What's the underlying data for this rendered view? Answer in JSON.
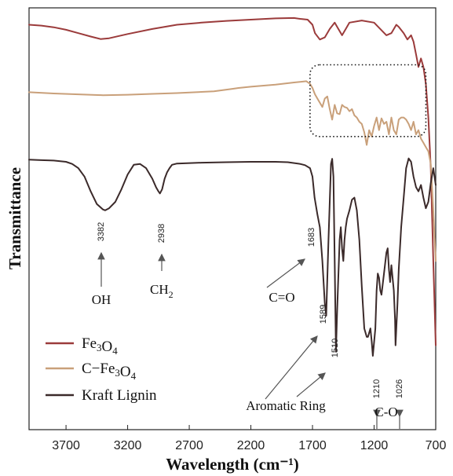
{
  "chart_data": {
    "type": "line",
    "xlabel": "Wavelength (cm⁻¹)",
    "ylabel": "Transmittance",
    "xlim": [
      4000,
      700
    ],
    "x_reversed": true,
    "x_ticks": [
      3700,
      3200,
      2700,
      2200,
      1700,
      1200,
      700
    ],
    "y_ticks": false,
    "legend_position": "bottom-left",
    "series": [
      {
        "name": "Fe3O4",
        "color": "#9b3b3b",
        "x": [
          4000,
          3900,
          3800,
          3700,
          3600,
          3500,
          3420,
          3350,
          3200,
          3000,
          2800,
          2600,
          2400,
          2200,
          2000,
          1850,
          1800,
          1740,
          1700,
          1680,
          1640,
          1600,
          1560,
          1520,
          1490,
          1460,
          1430,
          1400,
          1300,
          1200,
          1150,
          1100,
          1060,
          1020,
          1000,
          960,
          930,
          900,
          880,
          860,
          840,
          820,
          800,
          780,
          760,
          740,
          720,
          700
        ],
        "values": [
          96,
          95.8,
          95.4,
          94.8,
          94,
          93.2,
          92.6,
          92.8,
          93.8,
          95,
          96,
          96.5,
          96.9,
          97.2,
          97.5,
          97.6,
          97.4,
          97.2,
          96,
          94,
          92.5,
          93,
          95,
          96.5,
          95,
          93.5,
          95,
          96.5,
          97,
          96.5,
          95,
          93.5,
          94,
          96,
          95.5,
          94,
          92.5,
          93.5,
          92,
          89,
          86,
          88,
          86,
          82,
          74,
          62,
          40,
          20
        ]
      },
      {
        "name": "C−Fe3O4",
        "color": "#c9a07a",
        "x": [
          4000,
          3800,
          3600,
          3400,
          3200,
          3000,
          2800,
          2500,
          2350,
          2300,
          2200,
          2000,
          1850,
          1750,
          1720,
          1700,
          1680,
          1660,
          1640,
          1620,
          1600,
          1580,
          1560,
          1540,
          1520,
          1500,
          1480,
          1460,
          1440,
          1420,
          1400,
          1380,
          1360,
          1340,
          1320,
          1300,
          1280,
          1260,
          1240,
          1220,
          1200,
          1180,
          1160,
          1140,
          1120,
          1100,
          1080,
          1060,
          1040,
          1020,
          1000,
          980,
          960,
          940,
          920,
          900,
          880,
          860,
          840,
          820,
          800,
          780,
          760,
          740,
          720,
          700
        ],
        "values": [
          80,
          79.7,
          79.5,
          79.3,
          79.4,
          79.6,
          79.8,
          80.2,
          80.8,
          81,
          81.3,
          81.8,
          82.3,
          82.6,
          82,
          81,
          79.5,
          78.5,
          77.5,
          76.5,
          78.5,
          79,
          76,
          73.5,
          77,
          75,
          74.8,
          77,
          76.5,
          76.3,
          75.5,
          76,
          74.5,
          74,
          73,
          72.5,
          70.5,
          67.5,
          71,
          69.5,
          72,
          74,
          71,
          73.8,
          72.5,
          73,
          70,
          74,
          71,
          70,
          73.5,
          74,
          74,
          73.5,
          72.5,
          71,
          73,
          70,
          71,
          69,
          68,
          67,
          66,
          63,
          52,
          40
        ]
      },
      {
        "name": "Kraft Lignin",
        "color": "#3b2a2a",
        "x": [
          4000,
          3900,
          3800,
          3700,
          3650,
          3600,
          3550,
          3500,
          3450,
          3400,
          3382,
          3350,
          3300,
          3250,
          3200,
          3150,
          3100,
          3050,
          3000,
          2970,
          2950,
          2938,
          2920,
          2900,
          2880,
          2860,
          2840,
          2800,
          2600,
          2400,
          2200,
          2000,
          1900,
          1800,
          1760,
          1720,
          1700,
          1683,
          1660,
          1640,
          1620,
          1600,
          1589,
          1570,
          1550,
          1540,
          1530,
          1520,
          1510,
          1500,
          1480,
          1470,
          1460,
          1450,
          1440,
          1430,
          1420,
          1400,
          1380,
          1360,
          1340,
          1320,
          1300,
          1280,
          1260,
          1250,
          1230,
          1220,
          1210,
          1190,
          1180,
          1170,
          1160,
          1150,
          1140,
          1120,
          1100,
          1090,
          1080,
          1070,
          1060,
          1040,
          1030,
          1026,
          1010,
          1000,
          980,
          960,
          940,
          920,
          900,
          880,
          860,
          840,
          820,
          800,
          780,
          760,
          740,
          720,
          700
        ],
        "values": [
          64,
          63.9,
          63.8,
          63.5,
          63,
          62,
          60,
          56.5,
          53.5,
          52.2,
          52,
          52.5,
          54,
          57,
          60.5,
          62.8,
          63,
          62,
          59.5,
          57.5,
          56.5,
          56,
          57,
          59.5,
          61,
          62,
          62.8,
          63.1,
          63.3,
          63.4,
          63.5,
          63.5,
          63.4,
          63,
          62.7,
          62,
          60,
          55,
          51,
          48,
          40,
          30,
          27,
          45,
          63,
          64.2,
          60,
          40,
          18.5,
          28,
          45,
          48,
          43,
          40,
          45,
          48,
          50,
          52,
          54.5,
          55,
          52,
          45,
          34,
          24,
          22,
          22,
          24,
          21,
          17.5,
          24,
          33,
          37,
          36,
          33,
          32,
          37,
          42,
          43,
          38,
          35,
          39,
          33,
          26,
          20,
          30,
          38,
          48,
          55,
          62,
          64.3,
          63.5,
          60,
          57.5,
          56.5,
          58,
          55,
          52.5,
          54,
          58.5,
          62,
          58
        ]
      }
    ],
    "peak_labels": [
      {
        "text": "3382",
        "x": 3382,
        "y": 52,
        "arrow": "up"
      },
      {
        "text": "2938",
        "x": 2938,
        "y": 56,
        "arrow": "up"
      },
      {
        "text": "1683",
        "x": 1683,
        "y": 55,
        "arrow": "diagonal"
      },
      {
        "text": "1589",
        "x": 1589,
        "y": 27,
        "arrow": "diagonal"
      },
      {
        "text": "1510",
        "x": 1510,
        "y": 18.5,
        "arrow": "diagonal"
      },
      {
        "text": "1210",
        "x": 1210,
        "y": 17.5,
        "arrow": "down"
      },
      {
        "text": "1026",
        "x": 1026,
        "y": 20,
        "arrow": "down"
      }
    ],
    "group_labels": {
      "oh": "OH",
      "ch2_base": "CH",
      "ch2_sub": "2",
      "co_double": "C=O",
      "aromatic": "Aromatic Ring",
      "co_single": "C-O"
    },
    "highlight_box": {
      "x_range": [
        1720,
        780
      ],
      "y_range": [
        86.5,
        69.5
      ],
      "style": "dotted"
    },
    "legend": {
      "position": "bottom-left"
    }
  }
}
